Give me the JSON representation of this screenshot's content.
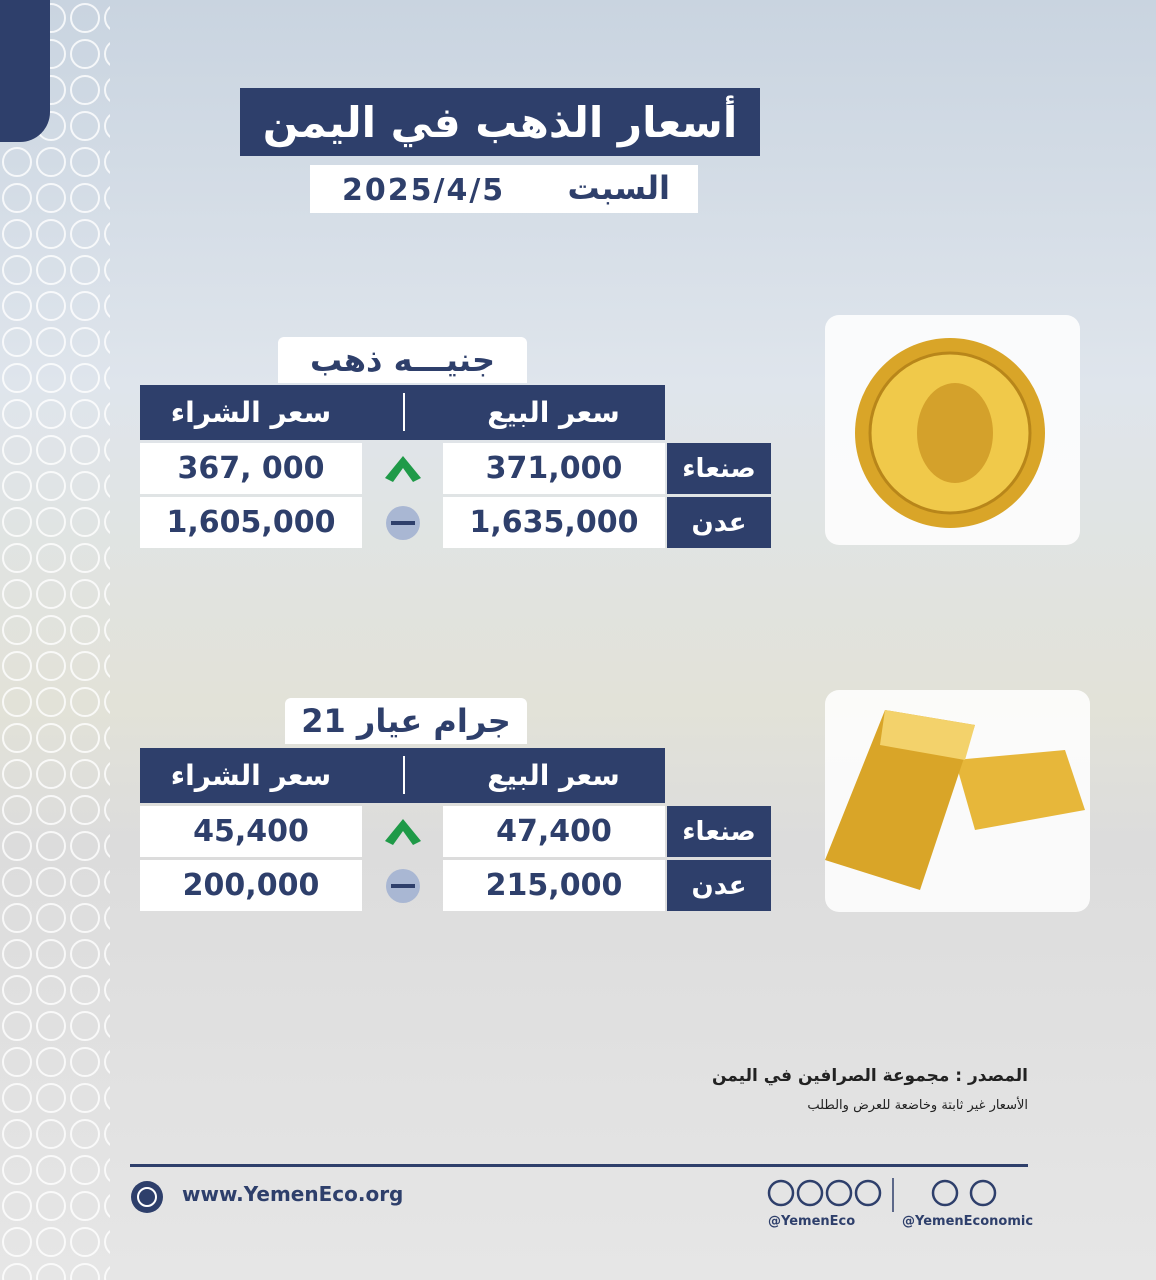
{
  "header": {
    "title": "أسعار الذهب في اليمن",
    "day": "السبت",
    "date": "2025/4/5"
  },
  "sections": [
    {
      "title": "جنيـــه ذهب",
      "columns": [
        "سعر البيع",
        "سعر الشراء"
      ],
      "rows": [
        [
          "صنعاء",
          "371,000",
          "367, 000"
        ],
        [
          "عدن",
          "1,635,000",
          "1,605,000"
        ]
      ]
    },
    {
      "title": "جرام عيار 21",
      "columns": [
        "سعر البيع",
        "سعر الشراء"
      ],
      "rows": [
        [
          "صنعاء",
          "47,400",
          "45,400"
        ],
        [
          "عدن",
          "215,000",
          "200,000"
        ]
      ]
    }
  ],
  "footer": {
    "source": "المصدر : مجموعة الصرافين في اليمن",
    "note": "الأسعار غير ثابتة وخاضعة للعرض والطلب",
    "website": "www.YemenEco.org",
    "handle_1": "@YemenEco",
    "handle_2": "@YemenEconomic"
  }
}
